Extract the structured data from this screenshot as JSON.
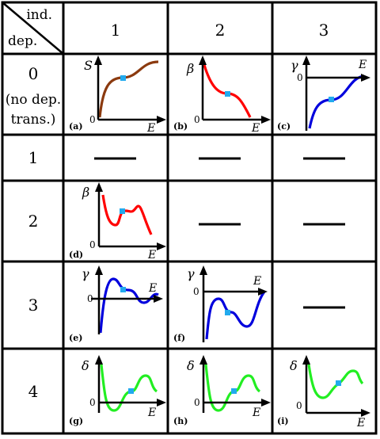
{
  "header": {
    "corner_top": "ind.",
    "corner_bottom": "dep.",
    "columns": [
      "1",
      "2",
      "3"
    ]
  },
  "rows": [
    {
      "label": "0",
      "note_line1": "(no dep.",
      "note_line2": "trans.)"
    },
    {
      "label": "1"
    },
    {
      "label": "2"
    },
    {
      "label": "3"
    },
    {
      "label": "4"
    }
  ],
  "panels": {
    "a": {
      "tag": "(a)",
      "ylabel": "S",
      "xlabel": "E",
      "origin": "0",
      "color": "#8B3A0F"
    },
    "b": {
      "tag": "(b)",
      "ylabel": "β",
      "xlabel": "E",
      "origin": "0",
      "color": "#FF0000"
    },
    "c": {
      "tag": "(c)",
      "ylabel": "γ",
      "xlabel": "E",
      "origin": "0",
      "color": "#0000DD"
    },
    "d": {
      "tag": "(d)",
      "ylabel": "β",
      "xlabel": "E",
      "origin": "0",
      "color": "#FF0000"
    },
    "e": {
      "tag": "(e)",
      "ylabel": "γ",
      "xlabel": "E",
      "origin": "0",
      "color": "#0000DD"
    },
    "f": {
      "tag": "(f)",
      "ylabel": "γ",
      "xlabel": "E",
      "origin": "0",
      "color": "#0000DD"
    },
    "g": {
      "tag": "(g)",
      "ylabel": "δ",
      "xlabel": "E",
      "origin": "0",
      "color": "#22EE22"
    },
    "h": {
      "tag": "(h)",
      "ylabel": "δ",
      "xlabel": "E",
      "origin": "0",
      "color": "#22EE22"
    },
    "i": {
      "tag": "(i)",
      "ylabel": "δ",
      "xlabel": "E",
      "origin": "0",
      "color": "#22EE22"
    }
  },
  "colors": {
    "marker": "#22AAEE",
    "grid": "#000000"
  }
}
